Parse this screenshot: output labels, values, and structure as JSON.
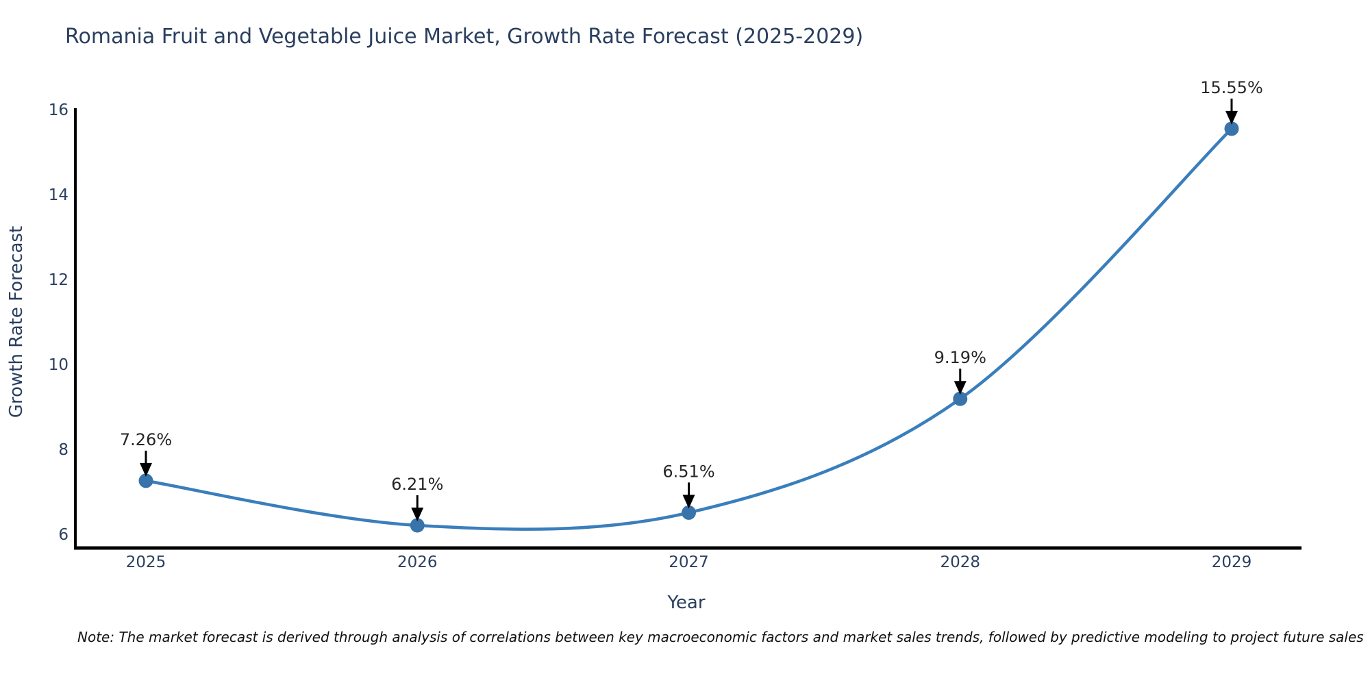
{
  "chart_data": {
    "type": "line",
    "line_shape": "spline",
    "title": "Romania Fruit and Vegetable Juice Market, Growth Rate Forecast (2025-2029)",
    "xlabel": "Year",
    "ylabel": "Growth Rate Forecast",
    "categories": [
      "2025",
      "2026",
      "2027",
      "2028",
      "2029"
    ],
    "series": [
      {
        "name": "Growth Rate Forecast",
        "values": [
          7.26,
          6.21,
          6.51,
          9.19,
          15.55
        ]
      }
    ],
    "point_labels": [
      "7.26%",
      "6.21%",
      "6.51%",
      "9.19%",
      "15.55%"
    ],
    "yticks": [
      6,
      8,
      10,
      12,
      14,
      16
    ],
    "ylim": [
      6,
      16
    ],
    "grid": false,
    "legend_position": "none",
    "line_color": "#3a7ebc",
    "marker_color": "#3873aa",
    "arrow_color": "#000000"
  },
  "note": "Note: The market forecast is derived through analysis of correlations between key macroeconomic factors and market sales trends, followed by predictive modeling to project future sales",
  "colors": {
    "title": "#2a3f5f",
    "axis_label": "#2a3f5f",
    "tick_label": "#2a3f5f",
    "annotation_text": "#262626",
    "spine": "#000000",
    "background": "#ffffff"
  }
}
